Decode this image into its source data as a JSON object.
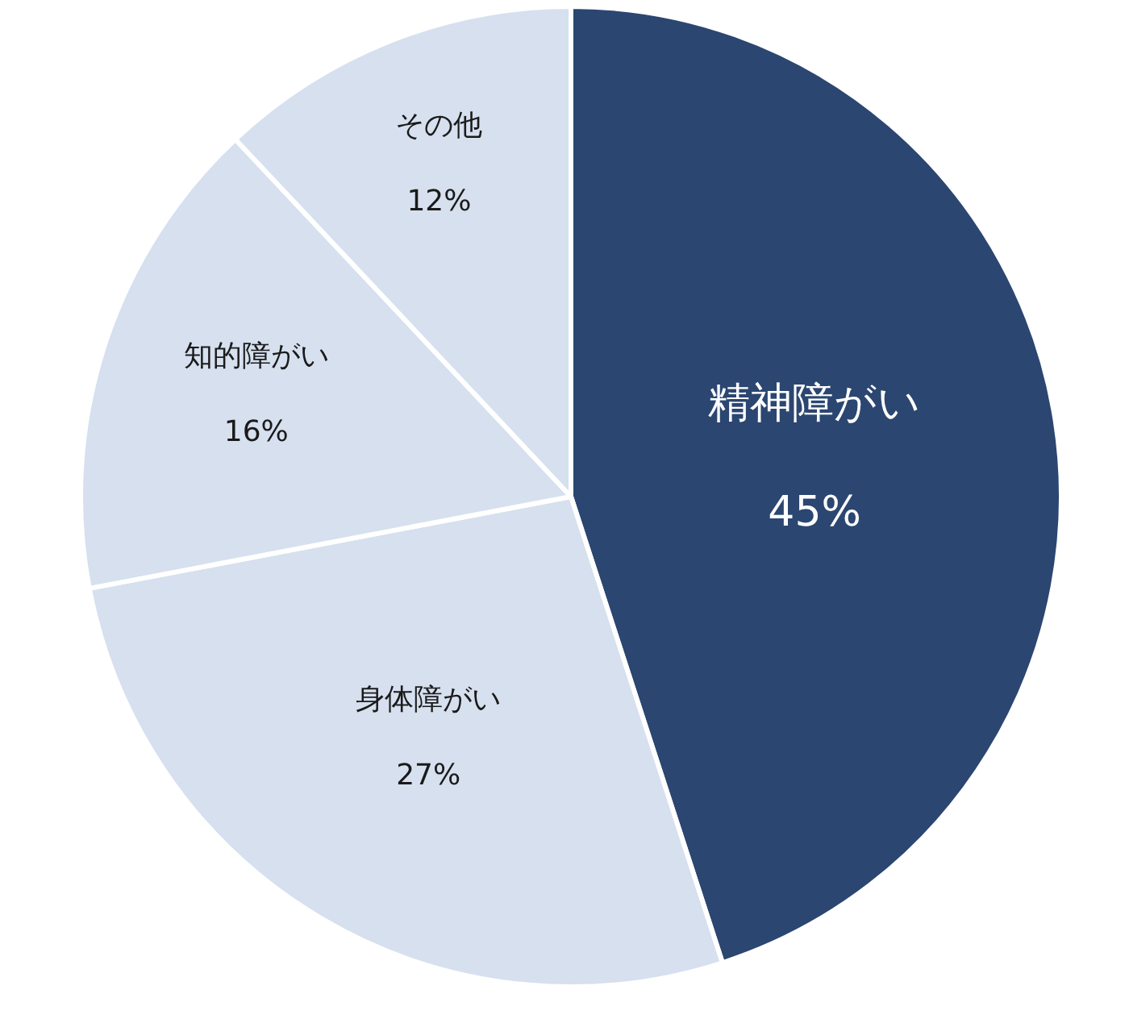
{
  "chart_data": {
    "type": "pie",
    "categories": [
      "精神障がい",
      "身体障がい",
      "知的障がい",
      "その他"
    ],
    "values": [
      45,
      27,
      16,
      12
    ],
    "value_labels": [
      "45%",
      "27%",
      "16%",
      "12%"
    ],
    "colors": [
      "#2b4670",
      "#d6e0ef",
      "#d6e0ef",
      "#d6e0ef"
    ],
    "legend": false
  }
}
